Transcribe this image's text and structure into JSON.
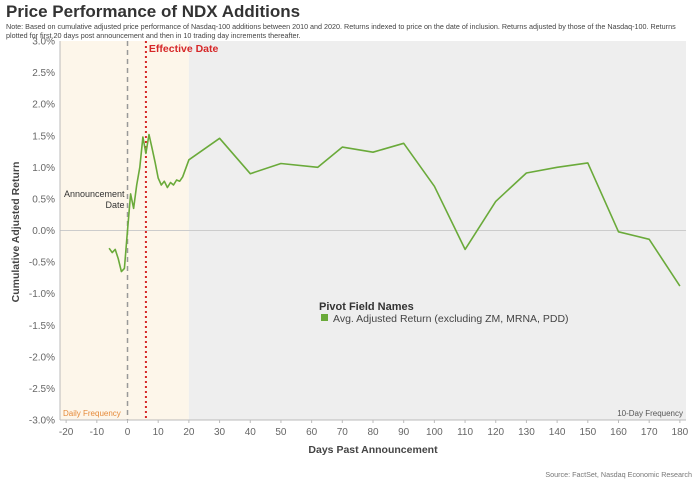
{
  "chart_data": {
    "type": "line",
    "title": "Price Performance of NDX Additions",
    "note": "Note: Based on cumulative adjusted price performance of Nasdaq-100 additions between 2010 and 2020. Returns indexed to price on the date of inclusion. Returns adjusted by those of the Nasdaq-100. Returns plotted for first 20 days post announcement and then in 10 trading day increments thereafter.",
    "xlabel": "Days Past Announcement",
    "ylabel": "Cumulative Adjusted Return",
    "xlim": [
      -22,
      182
    ],
    "ylim": [
      -3.0,
      3.0
    ],
    "x_ticks": [
      -20,
      -10,
      0,
      10,
      20,
      30,
      40,
      50,
      60,
      70,
      80,
      90,
      100,
      110,
      120,
      130,
      140,
      150,
      160,
      170,
      180
    ],
    "y_ticks": [
      3.0,
      2.5,
      2.0,
      1.5,
      1.0,
      0.5,
      0.0,
      -0.5,
      -1.0,
      -1.5,
      -2.0,
      -2.5,
      -3.0
    ],
    "y_tick_labels": [
      "3.0%",
      "2.5%",
      "2.0%",
      "1.5%",
      "1.0%",
      "0.5%",
      "0.0%",
      "-0.5%",
      "-1.0%",
      "-1.5%",
      "-2.0%",
      "-2.5%",
      "-3.0%"
    ],
    "legend_title": "Pivot Field Names",
    "legend_placement": "center",
    "series": [
      {
        "name": "Avg. Adjusted Return (excluding ZM, MRNA, PDD)",
        "color": "#6aaa3a",
        "x": [
          -6,
          -5,
          -4,
          -3,
          -2,
          -1,
          0,
          1,
          2,
          3,
          4,
          5,
          6,
          7,
          8,
          9,
          10,
          11,
          12,
          13,
          14,
          15,
          16,
          17,
          18,
          20,
          30,
          40,
          50,
          62,
          70,
          80,
          90,
          100,
          110,
          120,
          130,
          140,
          150,
          160,
          170,
          180
        ],
        "values": [
          -0.28,
          -0.35,
          -0.3,
          -0.45,
          -0.65,
          -0.6,
          0.0,
          0.58,
          0.35,
          0.72,
          1.0,
          1.48,
          1.22,
          1.52,
          1.3,
          1.08,
          0.83,
          0.72,
          0.78,
          0.68,
          0.76,
          0.72,
          0.8,
          0.78,
          0.85,
          1.12,
          1.46,
          0.9,
          1.06,
          1.0,
          1.32,
          1.24,
          1.38,
          0.7,
          -0.3,
          0.46,
          0.91,
          1.0,
          1.07,
          -0.02,
          -0.14,
          -0.88
        ]
      }
    ],
    "regions": [
      {
        "label": "Daily Frequency",
        "from": -22,
        "to": 20,
        "color": "#fdf6ea",
        "label_color": "#e58a3a"
      },
      {
        "label": "10-Day Frequency",
        "from": 20,
        "to": 182,
        "color": "#eeeeee",
        "label_color": "#555555"
      }
    ],
    "annotations": [
      {
        "label_lines": [
          "Announcement",
          "Date"
        ],
        "x": 0,
        "color": "#999999",
        "style": "dashed"
      },
      {
        "label": "Effective Date",
        "x": 6,
        "color": "#d62728",
        "style": "dotted"
      }
    ],
    "source": "Source: FactSet, Nasdaq Economic Research"
  }
}
